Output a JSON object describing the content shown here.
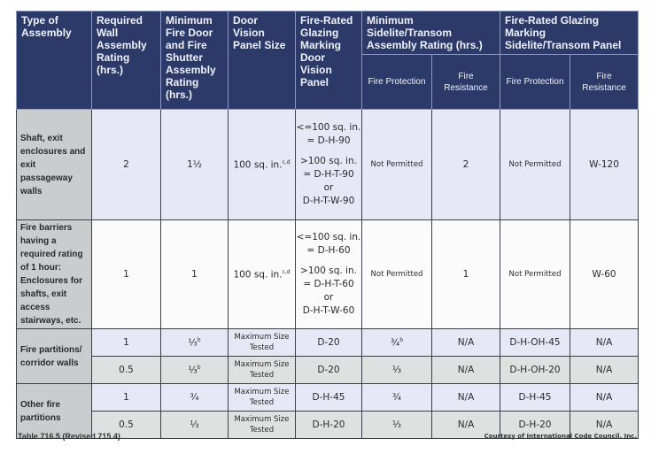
{
  "headers": {
    "type": "Type of Assembly",
    "wall": "Required Wall Assembly Rating (hrs.)",
    "door": "Minimum Fire Door and Fire Shutter Assembly Rating (hrs.)",
    "vision": "Door Vision Panel Size",
    "glazing": "Fire-Rated Glazing Marking Door Vision Panel",
    "sidelite": "Minimum Sidelite/Transom Assembly Rating (hrs.)",
    "sidelite_marking": "Fire-Rated Glazing Marking Sidelite/Transom Panel",
    "fp": "Fire Protection",
    "fr": "Fire Resistance"
  },
  "rows": [
    {
      "type": "Shaft, exit enclosures and exit passageway walls",
      "wall": "2",
      "door": "1½",
      "door_sup": "",
      "vision": "100 sq. in.",
      "vision_sup": "c,d",
      "glazing": [
        "<=100 sq. in.",
        "= D-H-90",
        ">100 sq. in.",
        "= D-H-T-90",
        "or",
        "D-H-T-W-90"
      ],
      "s_fp": "Not Permitted",
      "s_fp_sup": "",
      "s_fr": "2",
      "m_fp": "Not Permitted",
      "m_fr": "W-120"
    },
    {
      "type": "Fire barriers having a required rating of 1 hour: Enclosures for shafts, exit access stairways, etc.",
      "wall": "1",
      "door": "1",
      "door_sup": "",
      "vision": "100 sq. in.",
      "vision_sup": "c,d",
      "glazing": [
        "<=100 sq. in.",
        "= D-H-60",
        ">100 sq. in.",
        "= D-H-T-60",
        "or",
        "D-H-T-W-60"
      ],
      "s_fp": "Not Permitted",
      "s_fp_sup": "",
      "s_fr": "1",
      "m_fp": "Not Permitted",
      "m_fr": "W-60"
    },
    {
      "type": "Fire partitions/ corridor walls",
      "wall": "1",
      "door": "⅓",
      "door_sup": "b",
      "vision": "Maximum Size Tested",
      "glazing": "D-20",
      "s_fp": "¾",
      "s_fp_sup": "b",
      "s_fr": "N/A",
      "m_fp": "D-H-OH-45",
      "m_fr": "N/A"
    },
    {
      "wall": "0.5",
      "door": "⅓",
      "door_sup": "b",
      "vision": "Maximum Size Tested",
      "glazing": "D-20",
      "s_fp": "⅓",
      "s_fp_sup": "",
      "s_fr": "N/A",
      "m_fp": "D-H-OH-20",
      "m_fr": "N/A"
    },
    {
      "type": "Other fire partitions",
      "wall": "1",
      "door": "¾",
      "door_sup": "",
      "vision": "Maximum Size Tested",
      "glazing": "D-H-45",
      "s_fp": "¾",
      "s_fp_sup": "",
      "s_fr": "N/A",
      "m_fp": "D-H-45",
      "m_fr": "N/A"
    },
    {
      "wall": "0.5",
      "door": "⅓",
      "door_sup": "",
      "vision": "Maximum Size Tested",
      "glazing": "D-H-20",
      "s_fp": "⅓",
      "s_fp_sup": "",
      "s_fr": "N/A",
      "m_fp": "D-H-20",
      "m_fr": "N/A"
    }
  ],
  "caption": "Table 716.5 (Revised 715.4)",
  "credit": "Courtesy of International Code Council, Inc."
}
